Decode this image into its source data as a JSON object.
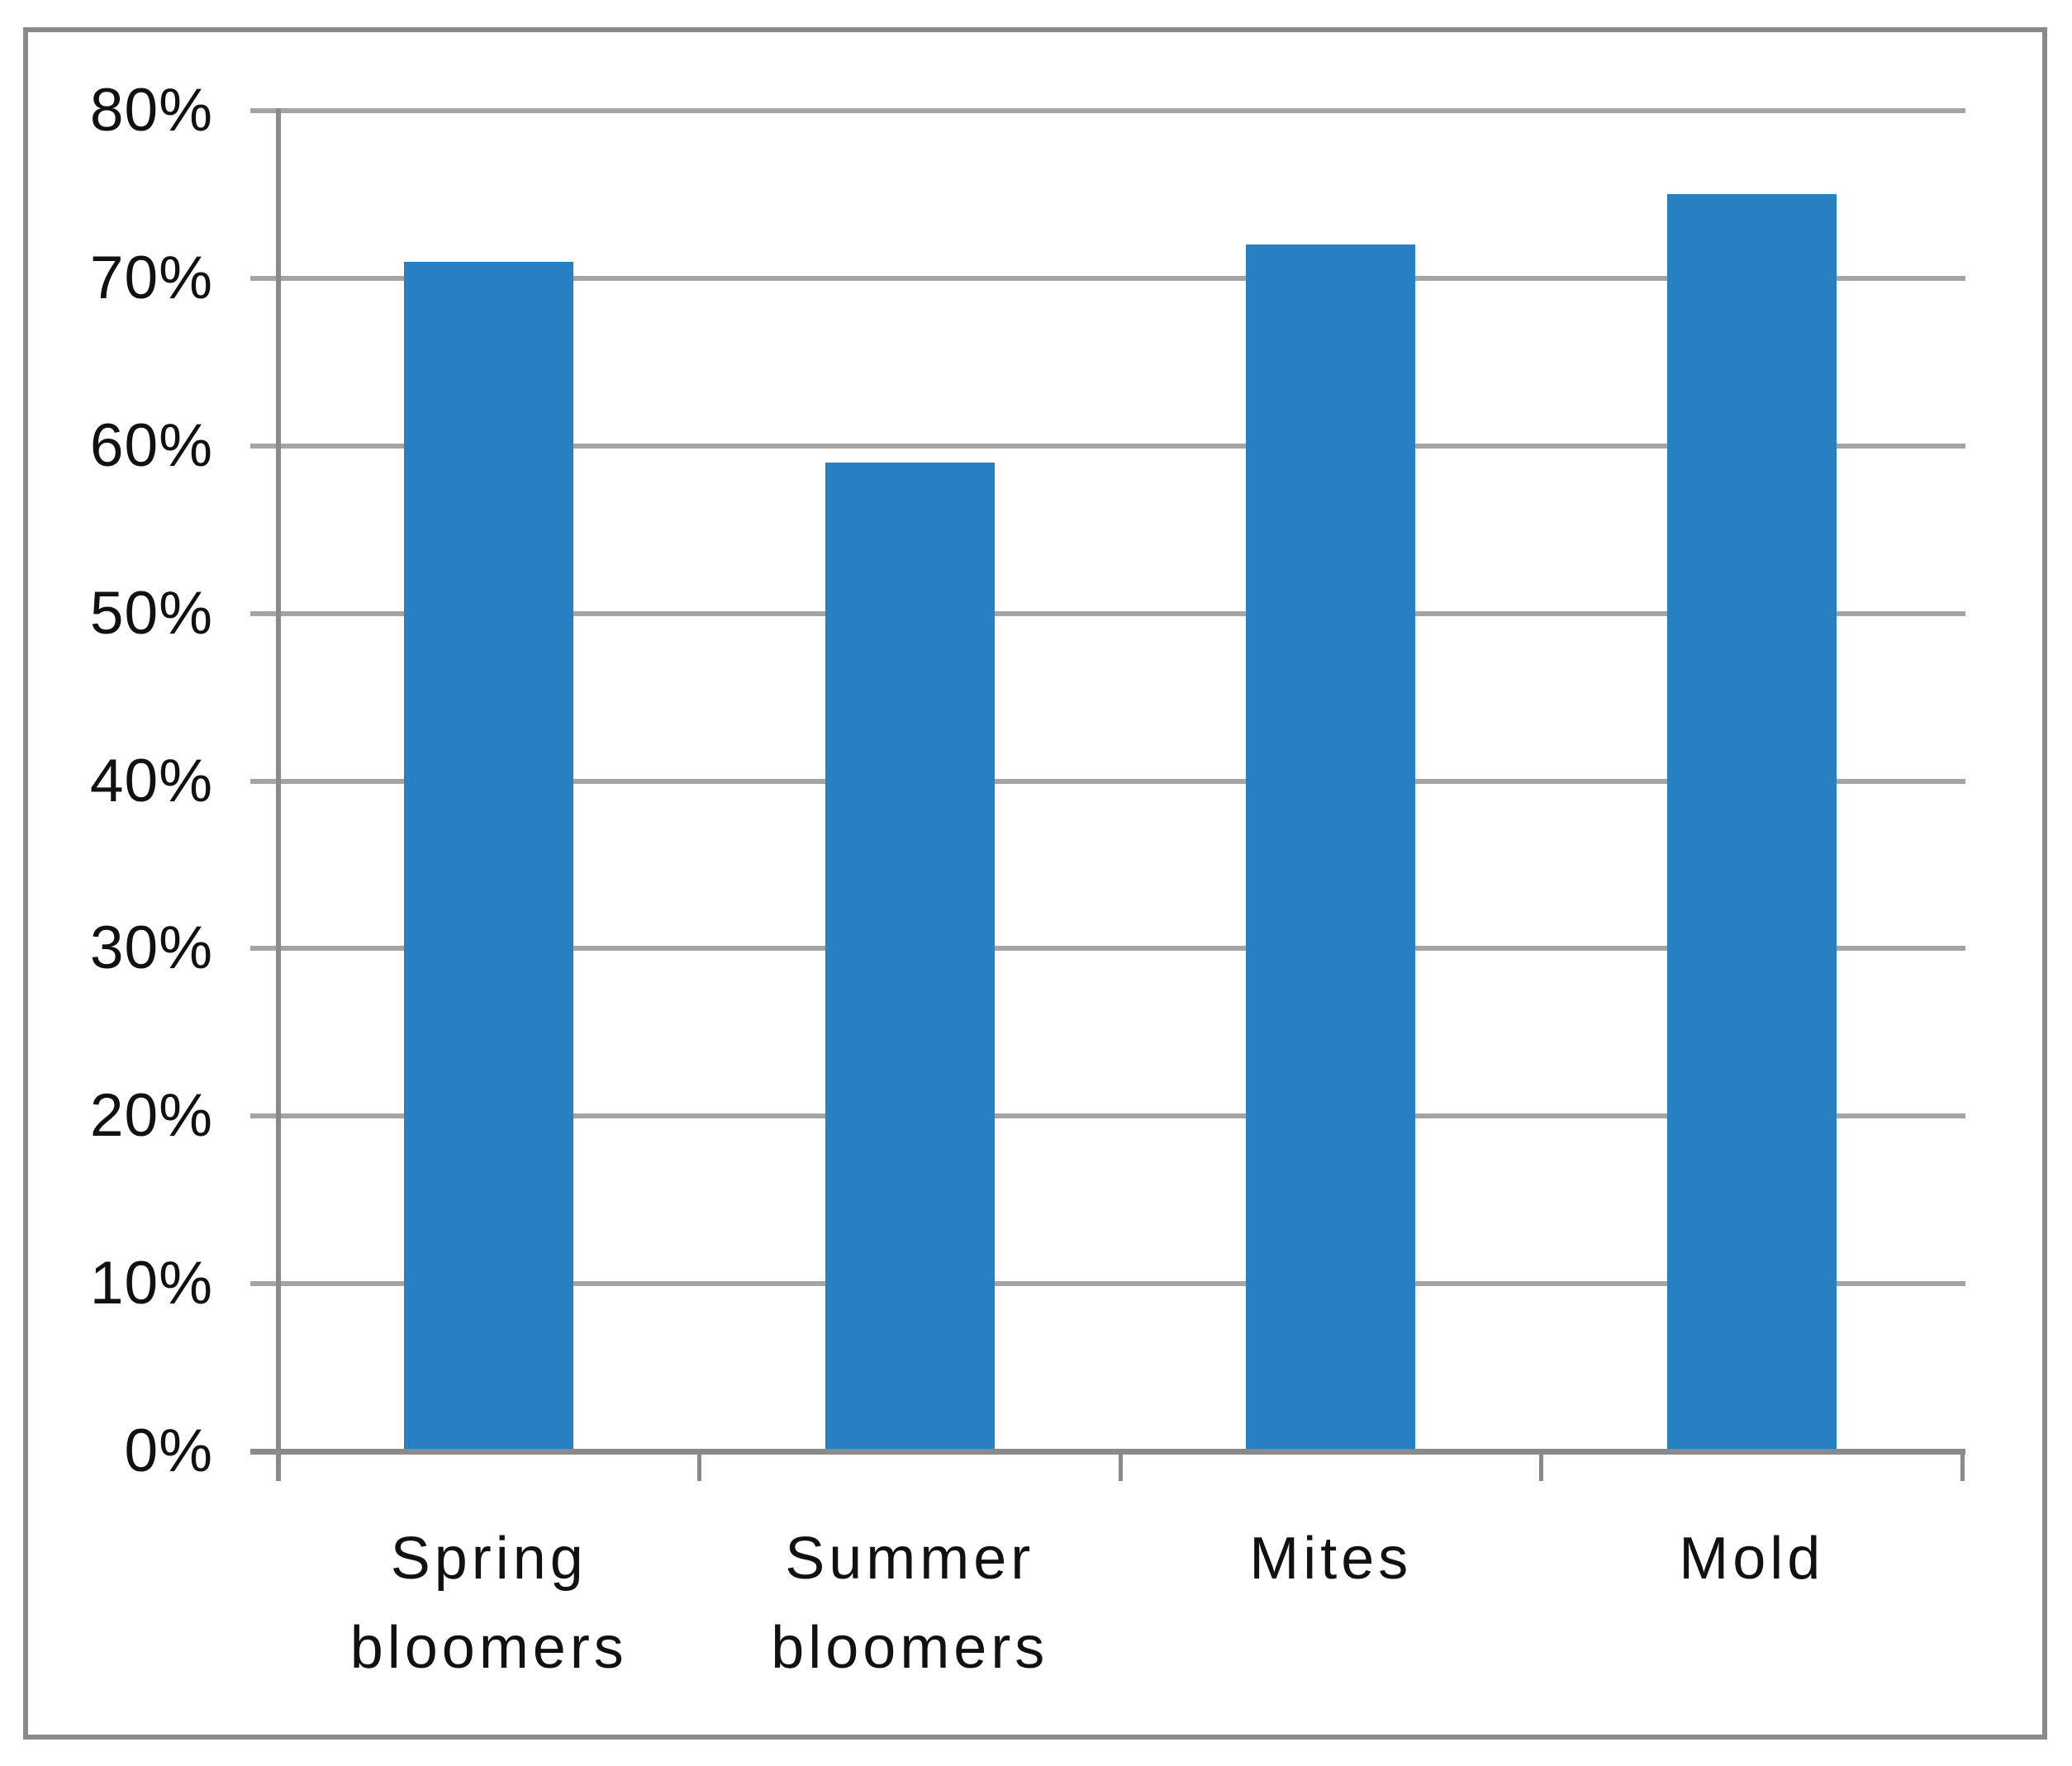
{
  "chart_data": {
    "type": "bar",
    "title": "",
    "subtitle": "",
    "categories": [
      "Spring bloomers",
      "Summer bloomers",
      "Mites",
      "Mold"
    ],
    "values": [
      71,
      59,
      72,
      75
    ],
    "value_unit": "%",
    "xlabel": "",
    "ylabel": "",
    "ylim": [
      0,
      80
    ],
    "ytick_values": [
      0,
      10,
      20,
      30,
      40,
      50,
      60,
      70,
      80
    ],
    "ytick_labels": [
      "0%",
      "10%",
      "20%",
      "30%",
      "40%",
      "50%",
      "60%",
      "70%",
      "80%"
    ],
    "xtick_display_labels": [
      "Spring\nbloomers",
      "Summer\nbloomers",
      "Mites",
      "Mold"
    ],
    "grid": "horizontal-on",
    "legend": "none",
    "colors": {
      "bar": "#2780c2",
      "gridline": "#a4a4a4",
      "axis": "#8a8a8a",
      "frame_border": "#8a8a8a",
      "text": "#111111",
      "background": "#ffffff"
    }
  }
}
